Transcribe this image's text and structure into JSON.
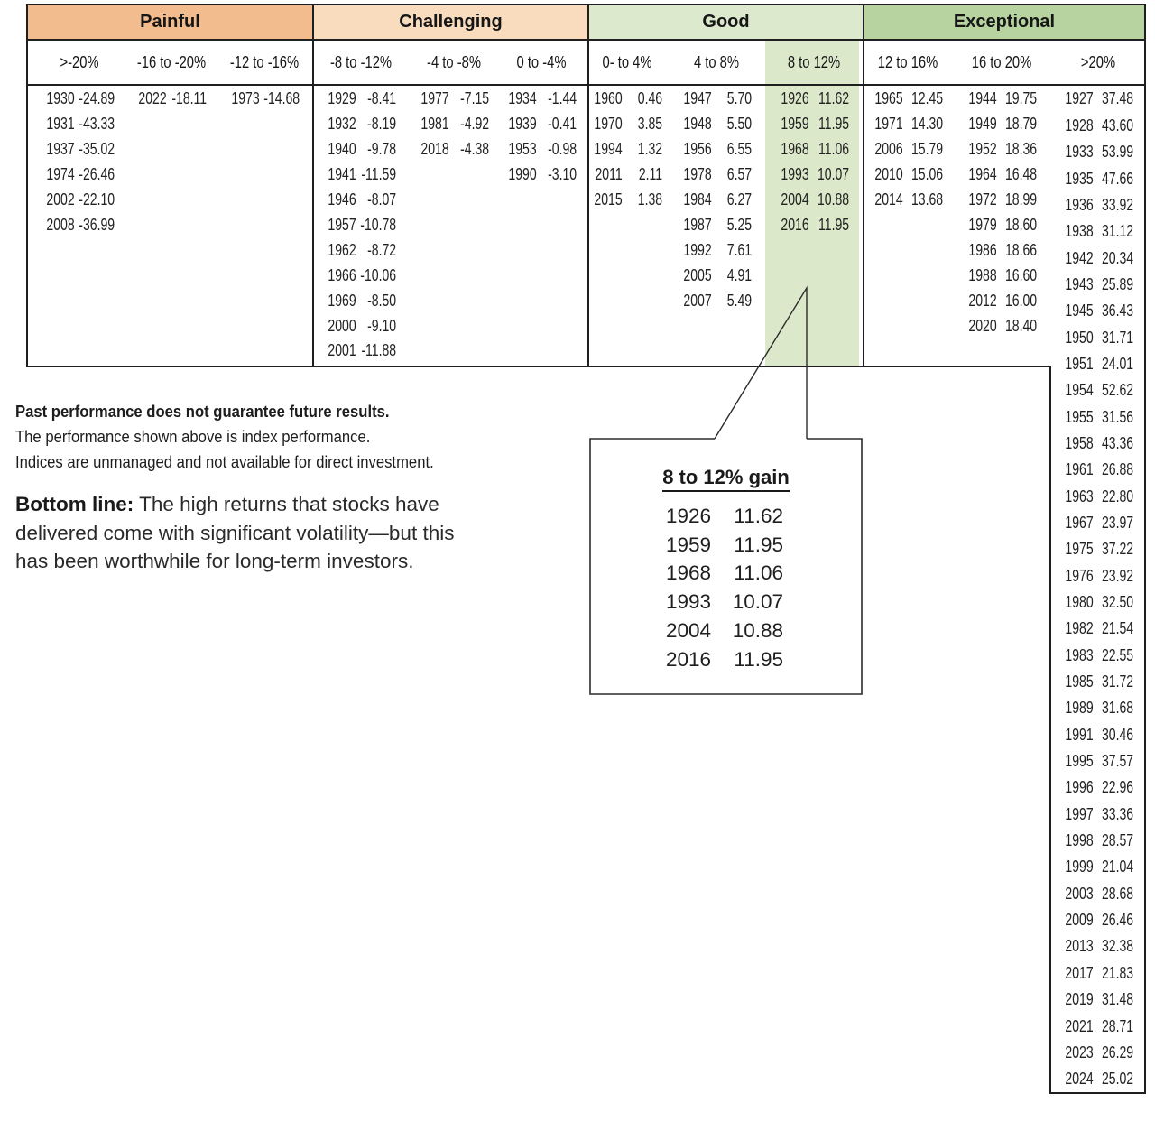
{
  "chart_data": {
    "type": "table",
    "title": "Annual index returns (%) grouped into return-range buckets",
    "highlight_color": "#dbe8c9",
    "groups": [
      {
        "label": "Painful",
        "color": "#f2bc8e",
        "columns": [
          {
            "range": ">-20%",
            "entries": [
              [
                "1930",
                "-24.89"
              ],
              [
                "1931",
                "-43.33"
              ],
              [
                "1937",
                "-35.02"
              ],
              [
                "1974",
                "-26.46"
              ],
              [
                "2002",
                "-22.10"
              ],
              [
                "2008",
                "-36.99"
              ]
            ]
          },
          {
            "range": "-16 to -20%",
            "entries": [
              [
                "2022",
                "-18.11"
              ]
            ]
          },
          {
            "range": "-12 to -16%",
            "entries": [
              [
                "1973",
                "-14.68"
              ]
            ]
          }
        ]
      },
      {
        "label": "Challenging",
        "color": "#f9dcbd",
        "columns": [
          {
            "range": "-8 to -12%",
            "entries": [
              [
                "1929",
                "-8.41"
              ],
              [
                "1932",
                "-8.19"
              ],
              [
                "1940",
                "-9.78"
              ],
              [
                "1941",
                "-11.59"
              ],
              [
                "1946",
                "-8.07"
              ],
              [
                "1957",
                "-10.78"
              ],
              [
                "1962",
                "-8.72"
              ],
              [
                "1966",
                "-10.06"
              ],
              [
                "1969",
                "-8.50"
              ],
              [
                "2000",
                "-9.10"
              ],
              [
                "2001",
                "-11.88"
              ]
            ]
          },
          {
            "range": "-4 to -8%",
            "entries": [
              [
                "1977",
                "-7.15"
              ],
              [
                "1981",
                "-4.92"
              ],
              [
                "2018",
                "-4.38"
              ]
            ]
          },
          {
            "range": "0 to -4%",
            "entries": [
              [
                "1934",
                "-1.44"
              ],
              [
                "1939",
                "-0.41"
              ],
              [
                "1953",
                "-0.98"
              ],
              [
                "1990",
                "-3.10"
              ]
            ]
          }
        ]
      },
      {
        "label": "Good",
        "color": "#dce9cd",
        "columns": [
          {
            "range": "0- to 4%",
            "entries": [
              [
                "1960",
                "0.46"
              ],
              [
                "1970",
                "3.85"
              ],
              [
                "1994",
                "1.32"
              ],
              [
                "2011",
                "2.11"
              ],
              [
                "2015",
                "1.38"
              ]
            ]
          },
          {
            "range": "4 to 8%",
            "entries": [
              [
                "1947",
                "5.70"
              ],
              [
                "1948",
                "5.50"
              ],
              [
                "1956",
                "6.55"
              ],
              [
                "1978",
                "6.57"
              ],
              [
                "1984",
                "6.27"
              ],
              [
                "1987",
                "5.25"
              ],
              [
                "1992",
                "7.61"
              ],
              [
                "2005",
                "4.91"
              ],
              [
                "2007",
                "5.49"
              ]
            ]
          },
          {
            "range": "8 to 12%",
            "highlighted": true,
            "entries": [
              [
                "1926",
                "11.62"
              ],
              [
                "1959",
                "11.95"
              ],
              [
                "1968",
                "11.06"
              ],
              [
                "1993",
                "10.07"
              ],
              [
                "2004",
                "10.88"
              ],
              [
                "2016",
                "11.95"
              ]
            ]
          }
        ]
      },
      {
        "label": "Exceptional",
        "color": "#b7d3a0",
        "columns": [
          {
            "range": "12 to 16%",
            "entries": [
              [
                "1965",
                "12.45"
              ],
              [
                "1971",
                "14.30"
              ],
              [
                "2006",
                "15.79"
              ],
              [
                "2010",
                "15.06"
              ],
              [
                "2014",
                "13.68"
              ]
            ]
          },
          {
            "range": "16 to 20%",
            "entries": [
              [
                "1944",
                "19.75"
              ],
              [
                "1949",
                "18.79"
              ],
              [
                "1952",
                "18.36"
              ],
              [
                "1964",
                "16.48"
              ],
              [
                "1972",
                "18.99"
              ],
              [
                "1979",
                "18.60"
              ],
              [
                "1986",
                "18.66"
              ],
              [
                "1988",
                "16.60"
              ],
              [
                "2012",
                "16.00"
              ],
              [
                "2020",
                "18.40"
              ]
            ]
          },
          {
            "range": ">20%",
            "entries": [
              [
                "1927",
                "37.48"
              ],
              [
                "1928",
                "43.60"
              ],
              [
                "1933",
                "53.99"
              ],
              [
                "1935",
                "47.66"
              ],
              [
                "1936",
                "33.92"
              ],
              [
                "1938",
                "31.12"
              ],
              [
                "1942",
                "20.34"
              ],
              [
                "1943",
                "25.89"
              ],
              [
                "1945",
                "36.43"
              ],
              [
                "1950",
                "31.71"
              ],
              [
                "1951",
                "24.01"
              ],
              [
                "1954",
                "52.62"
              ],
              [
                "1955",
                "31.56"
              ],
              [
                "1958",
                "43.36"
              ],
              [
                "1961",
                "26.88"
              ],
              [
                "1963",
                "22.80"
              ],
              [
                "1967",
                "23.97"
              ],
              [
                "1975",
                "37.22"
              ],
              [
                "1976",
                "23.92"
              ],
              [
                "1980",
                "32.50"
              ],
              [
                "1982",
                "21.54"
              ],
              [
                "1983",
                "22.55"
              ],
              [
                "1985",
                "31.72"
              ],
              [
                "1989",
                "31.68"
              ],
              [
                "1991",
                "30.46"
              ],
              [
                "1995",
                "37.57"
              ],
              [
                "1996",
                "22.96"
              ],
              [
                "1997",
                "33.36"
              ],
              [
                "1998",
                "28.57"
              ],
              [
                "1999",
                "21.04"
              ],
              [
                "2003",
                "28.68"
              ],
              [
                "2009",
                "26.46"
              ],
              [
                "2013",
                "32.38"
              ],
              [
                "2017",
                "21.83"
              ],
              [
                "2019",
                "31.48"
              ],
              [
                "2021",
                "28.71"
              ],
              [
                "2023",
                "26.29"
              ],
              [
                "2024",
                "25.02"
              ]
            ]
          }
        ]
      }
    ]
  },
  "callout": {
    "title": "8 to 12% gain",
    "entries": [
      [
        "1926",
        "11.62"
      ],
      [
        "1959",
        "11.95"
      ],
      [
        "1968",
        "11.06"
      ],
      [
        "1993",
        "10.07"
      ],
      [
        "2004",
        "10.88"
      ],
      [
        "2016",
        "11.95"
      ]
    ]
  },
  "notes": {
    "line1": "Past performance does not guarantee future results.",
    "line2": "The performance shown above is index performance.",
    "line3": "Indices are unmanaged and not available for direct investment.",
    "bottom_label": "Bottom line:",
    "bottom_text": " The high returns that stocks have delivered come with significant volatility—but this has been worthwhile for long-term investors."
  }
}
